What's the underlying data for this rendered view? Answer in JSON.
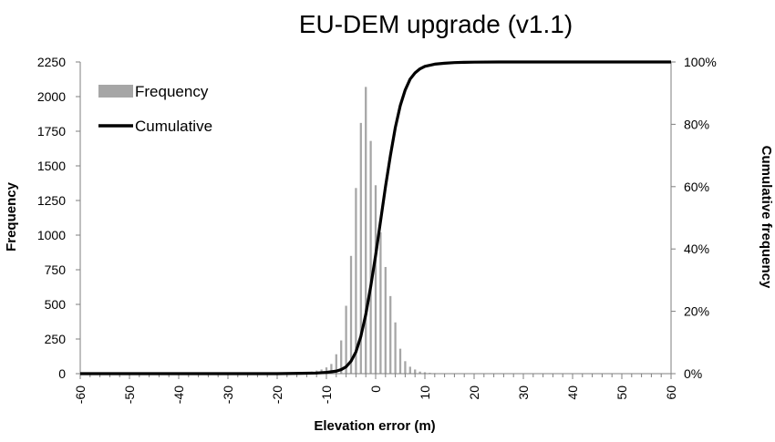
{
  "chart_data": {
    "type": "bar",
    "title": "EU-DEM upgrade (v1.1)",
    "xlabel": "Elevation error (m)",
    "ylabel": "Frequency",
    "y2label": "Cumulative frequency",
    "xlim": [
      -60,
      60
    ],
    "ylim": [
      0,
      2250
    ],
    "y2lim": [
      0,
      1
    ],
    "x_ticks": [
      "-60",
      "-50",
      "-40",
      "-30",
      "-20",
      "-10",
      "0",
      "10",
      "20",
      "30",
      "40",
      "50",
      "60"
    ],
    "y_ticks": [
      "0",
      "250",
      "500",
      "750",
      "1000",
      "1250",
      "1500",
      "1750",
      "2000",
      "2250"
    ],
    "y2_ticks": [
      "0%",
      "20%",
      "40%",
      "60%",
      "80%",
      "100%"
    ],
    "legend": {
      "position": "top-left",
      "entries": [
        "Frequency",
        "Cumulative"
      ]
    },
    "grid": false,
    "series": [
      {
        "name": "Frequency",
        "type": "bar",
        "color": "#a6a6a6",
        "x": [
          -60,
          -59,
          -58,
          -57,
          -56,
          -55,
          -54,
          -53,
          -52,
          -51,
          -50,
          -49,
          -48,
          -47,
          -46,
          -45,
          -44,
          -43,
          -42,
          -41,
          -40,
          -39,
          -38,
          -37,
          -36,
          -35,
          -34,
          -33,
          -32,
          -31,
          -30,
          -29,
          -28,
          -27,
          -26,
          -25,
          -24,
          -23,
          -22,
          -21,
          -20,
          -19,
          -18,
          -17,
          -16,
          -15,
          -14,
          -13,
          -12,
          -11,
          -10,
          -9,
          -8,
          -7,
          -6,
          -5,
          -4,
          -3,
          -2,
          -1,
          0,
          1,
          2,
          3,
          4,
          5,
          6,
          7,
          8,
          9,
          10,
          11,
          12,
          13,
          14,
          15,
          16,
          17,
          18,
          19,
          20,
          21,
          22,
          23,
          24,
          25,
          26,
          27,
          28,
          29,
          30,
          31,
          32,
          33,
          34,
          35,
          36,
          37,
          38,
          39,
          40,
          41,
          42,
          43,
          44,
          45,
          46,
          47,
          48,
          49,
          50,
          51,
          52,
          53,
          54,
          55,
          56,
          57,
          58,
          59,
          60
        ],
        "values": [
          1,
          1,
          1,
          1,
          1,
          1,
          1,
          1,
          1,
          1,
          1,
          1,
          1,
          1,
          1,
          1,
          1,
          1,
          1,
          1,
          1,
          1,
          1,
          1,
          1,
          1,
          1,
          1,
          1,
          1,
          1,
          1,
          1,
          1,
          1,
          1,
          1,
          1,
          1,
          1,
          2,
          2,
          3,
          4,
          6,
          8,
          10,
          15,
          22,
          30,
          45,
          70,
          140,
          240,
          490,
          850,
          1340,
          1810,
          2070,
          1680,
          1360,
          1020,
          770,
          560,
          370,
          180,
          90,
          50,
          30,
          15,
          10,
          6,
          4,
          3,
          2,
          2,
          1,
          1,
          1,
          1,
          1,
          1,
          1,
          1,
          1,
          1,
          1,
          1,
          1,
          1,
          1,
          1,
          1,
          1,
          1,
          1,
          1,
          1,
          1,
          1,
          1,
          1,
          1,
          1,
          1,
          1,
          1,
          1,
          1,
          1,
          1,
          1,
          1,
          1,
          1,
          1,
          1,
          1,
          1,
          1,
          1
        ]
      },
      {
        "name": "Cumulative",
        "type": "line",
        "axis": "right",
        "color": "#000000",
        "x": [
          -60,
          -20,
          -15,
          -12,
          -10,
          -8,
          -7,
          -6,
          -5,
          -4,
          -3,
          -2,
          -1,
          0,
          1,
          2,
          3,
          4,
          5,
          6,
          7,
          8,
          9,
          10,
          12,
          14,
          16,
          18,
          20,
          25,
          30,
          40,
          60
        ],
        "values": [
          0,
          0,
          0.001,
          0.002,
          0.004,
          0.008,
          0.013,
          0.022,
          0.04,
          0.07,
          0.12,
          0.19,
          0.28,
          0.38,
          0.49,
          0.6,
          0.7,
          0.79,
          0.86,
          0.91,
          0.945,
          0.965,
          0.978,
          0.986,
          0.993,
          0.996,
          0.998,
          0.999,
          0.9995,
          1,
          1,
          1,
          1
        ]
      }
    ]
  }
}
